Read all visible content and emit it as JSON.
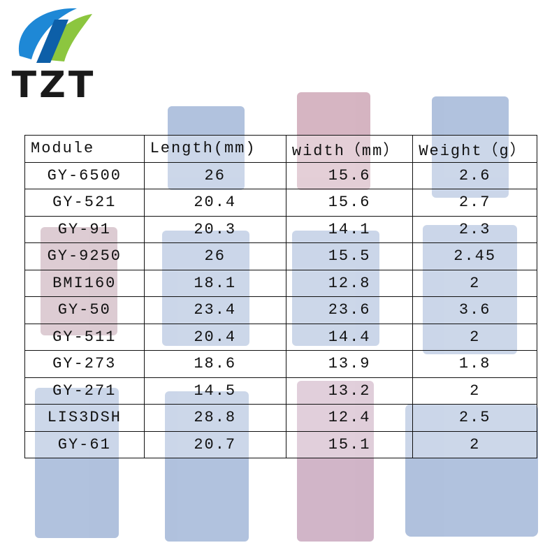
{
  "header": {
    "logo": "TZT"
  },
  "table": {
    "columns": [
      "Module",
      "Length(mm)",
      "width（mm）",
      "Weight（g）"
    ],
    "rows": [
      [
        "GY-6500",
        "26",
        "15.6",
        "2.6"
      ],
      [
        "GY-521",
        "20.4",
        "15.6",
        "2.7"
      ],
      [
        "GY-91",
        "20.3",
        "14.1",
        "2.3"
      ],
      [
        "GY-9250",
        "26",
        "15.5",
        "2.45"
      ],
      [
        "BMI160",
        "18.1",
        "12.8",
        "2"
      ],
      [
        "GY-50",
        "23.4",
        "23.6",
        "3.6"
      ],
      [
        "GY-511",
        "20.4",
        "14.4",
        "2"
      ],
      [
        "GY-273",
        "18.6",
        "13.9",
        "1.8"
      ],
      [
        "GY-271",
        "14.5",
        "13.2",
        "2"
      ],
      [
        "LIS3DSH",
        "28.8",
        "12.4",
        "2.5"
      ],
      [
        "GY-61",
        "20.7",
        "15.1",
        "2"
      ]
    ]
  }
}
